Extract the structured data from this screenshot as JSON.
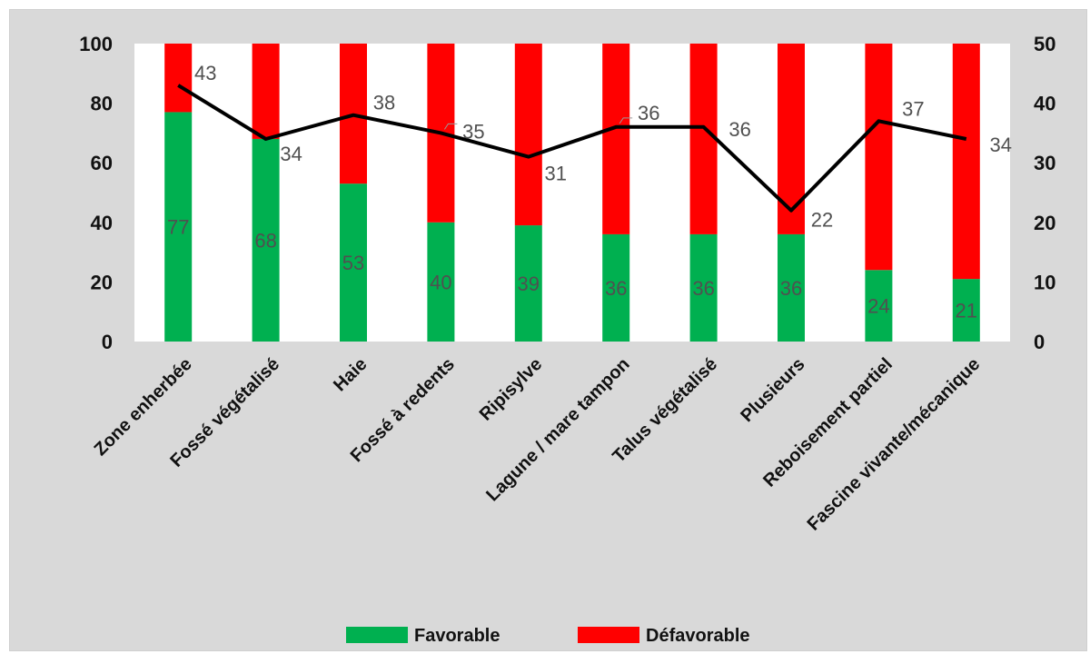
{
  "chart_data": {
    "type": "bar",
    "stacked": true,
    "categories": [
      "Zone enherbée",
      "Fossé végétalisé",
      "Haie",
      "Fossé à redents",
      "Ripisylve",
      "Lagune / mare tampon",
      "Talus végétalisé",
      "Plusieurs",
      "Reboisement partiel",
      "Fascine vivante/mécanique"
    ],
    "series": [
      {
        "name": "Favorable",
        "type": "bar",
        "axis": "left",
        "color": "#00b050",
        "values": [
          77,
          68,
          53,
          40,
          39,
          36,
          36,
          36,
          24,
          21
        ]
      },
      {
        "name": "Défavorable",
        "type": "bar",
        "axis": "left",
        "color": "#ff0000",
        "values": [
          23,
          32,
          47,
          60,
          61,
          64,
          64,
          64,
          76,
          79
        ]
      },
      {
        "type": "line",
        "axis": "right",
        "color": "#000000",
        "values": [
          43,
          34,
          38,
          35,
          31,
          36,
          36,
          22,
          37,
          34
        ]
      }
    ],
    "y_left": {
      "ylim": [
        0,
        100
      ],
      "ticks": [
        "0",
        "20",
        "40",
        "60",
        "80",
        "100"
      ]
    },
    "y_right": {
      "ylim": [
        0,
        50
      ],
      "ticks": [
        "0",
        "10",
        "20",
        "30",
        "40",
        "50"
      ]
    },
    "grid": false,
    "legend": {
      "position": "bottom",
      "entries": [
        "Favorable",
        "Défavorable"
      ]
    },
    "background": "#d9d9d9",
    "plot_background": "#ffffff"
  }
}
